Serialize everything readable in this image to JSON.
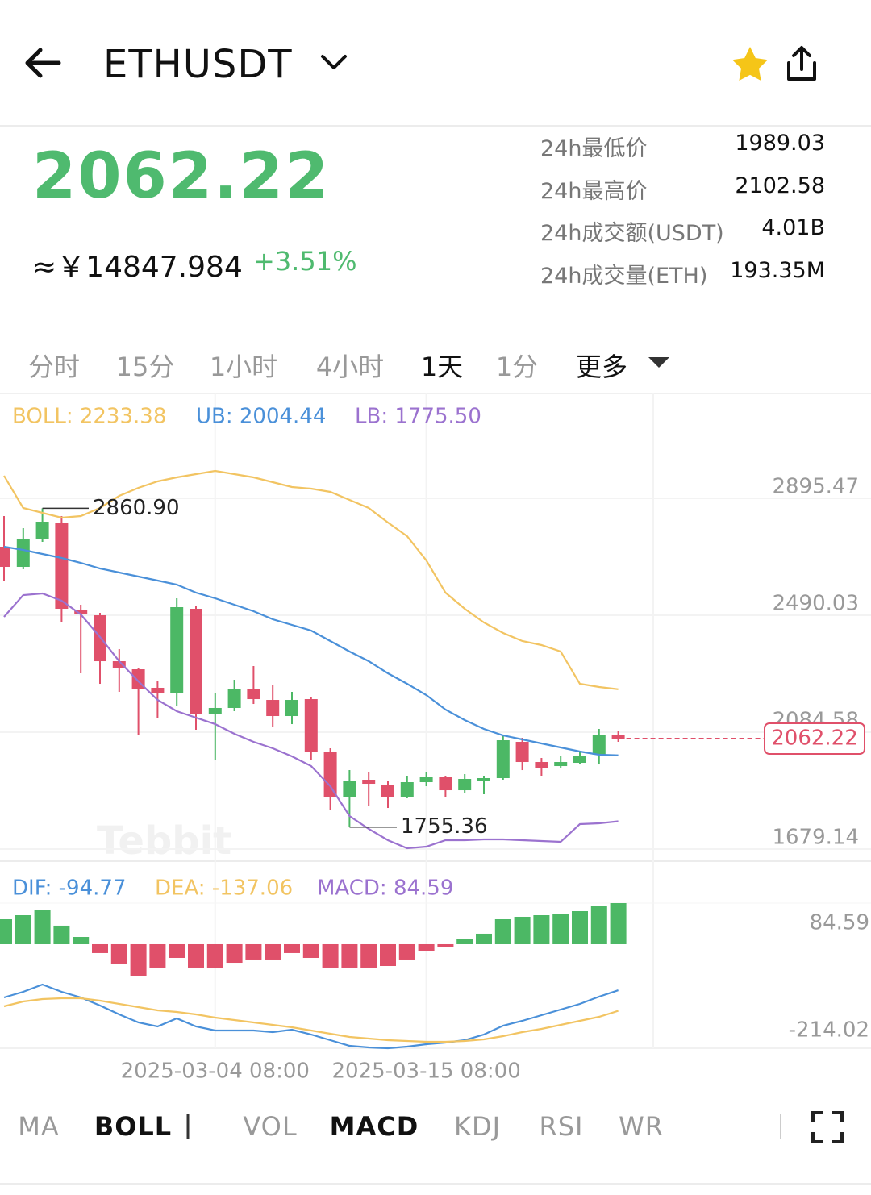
{
  "header": {
    "symbol": "ETHUSDT"
  },
  "ticker": {
    "price": "2062.22",
    "price_cny": "≈￥14847.984",
    "change": "+3.51%",
    "stats": [
      {
        "label": "24h最低价",
        "value": "1989.03"
      },
      {
        "label": "24h最高价",
        "value": "2102.58"
      },
      {
        "label": "24h成交额(USDT)",
        "value": "4.01B"
      },
      {
        "label": "24h成交量(ETH)",
        "value": "193.35M"
      }
    ]
  },
  "timeframes": {
    "items": [
      "分时",
      "15分",
      "1小时",
      "4小时",
      "1天",
      "1分",
      "更多"
    ],
    "active_index": 4
  },
  "indicators": {
    "items": [
      "MA",
      "BOLL",
      "VOL",
      "MACD",
      "KDJ",
      "RSI",
      "WR"
    ],
    "active_indices": [
      1,
      3
    ]
  },
  "chart_data": [
    {
      "type": "candlestick",
      "watermark": "Tebbit",
      "categories": [
        null,
        null,
        null,
        null,
        null,
        null,
        null,
        null,
        null,
        null,
        null,
        "2025-03-04 08:00",
        null,
        null,
        null,
        null,
        null,
        null,
        null,
        null,
        null,
        null,
        "2025-03-15 08:00",
        null,
        null,
        null,
        null,
        null,
        null,
        null,
        null,
        null,
        null
      ],
      "candles": {
        "open": [
          2727.7,
          2657.8,
          2755.7,
          2811.6,
          2506.8,
          2490.0,
          2330.6,
          2302.7,
          2238.4,
          2218.8,
          2512.4,
          2148.9,
          2168.5,
          2232.8,
          2196.4,
          2140.5,
          2199.2,
          2014.7,
          1860.9,
          1919.6,
          1902.8,
          1860.9,
          1911.2,
          1928.0,
          1883.2,
          1916.8,
          1925.2,
          2051.0,
          1981.1,
          1967.1,
          1978.3,
          2006.3,
          2073.4
        ],
        "high": [
          2834.0,
          2792.0,
          2860.9,
          2834.0,
          2526.4,
          2498.4,
          2372.6,
          2308.3,
          2260.7,
          2548.7,
          2520.8,
          2218.8,
          2266.3,
          2313.9,
          2246.8,
          2224.4,
          2204.8,
          2028.6,
          1953.1,
          1944.8,
          1916.8,
          1933.6,
          1947.6,
          1933.6,
          1939.2,
          1933.6,
          2070.6,
          2065.0,
          1995.1,
          2003.5,
          2017.5,
          2095.8,
          2090.2
        ],
        "low": [
          2610.3,
          2649.4,
          2744.5,
          2464.9,
          2288.7,
          2252.3,
          2224.4,
          2073.4,
          2134.9,
          2176.8,
          2093.0,
          1989.5,
          2157.3,
          2182.4,
          2101.4,
          2112.5,
          1986.7,
          1813.3,
          1755.36,
          1827.3,
          1821.7,
          1855.3,
          1897.2,
          1860.9,
          1872.1,
          1869.3,
          1919.6,
          1953.1,
          1933.6,
          1961.5,
          1972.7,
          1972.7,
          2051.0
        ],
        "close": [
          2657.8,
          2755.7,
          2814.4,
          2512.4,
          2492.8,
          2330.6,
          2308.3,
          2232.8,
          2218.8,
          2518.0,
          2146.1,
          2168.5,
          2232.8,
          2199.2,
          2140.5,
          2196.4,
          2017.5,
          1860.9,
          1916.8,
          1905.6,
          1860.9,
          1911.2,
          1930.8,
          1883.2,
          1922.4,
          1925.2,
          2056.6,
          1981.1,
          1961.5,
          1981.1,
          2000.7,
          2073.4,
          2062.22
        ],
        "up_color": "#4cb865",
        "down_color": "#e0506a"
      },
      "high_label": "2860.90",
      "series": [
        {
          "label": "BOLL: 2233.38",
          "color": "#f2c462",
          "values": [
            2973.8,
            2861.9,
            2845.2,
            2828.4,
            2834.0,
            2861.9,
            2903.9,
            2931.8,
            2954.2,
            2968.2,
            2979.4,
            2990.5,
            2979.4,
            2968.2,
            2951.4,
            2934.6,
            2929.0,
            2917.8,
            2889.9,
            2861.9,
            2811.6,
            2764.0,
            2680.2,
            2568.3,
            2512.4,
            2464.9,
            2428.5,
            2400.5,
            2386.5,
            2364.2,
            2252.3,
            2241.2,
            2233.38
          ]
        },
        {
          "label": "UB: 2004.44",
          "color": "#4a90d9",
          "values": [
            2727.7,
            2716.5,
            2702.5,
            2688.6,
            2671.8,
            2652.2,
            2638.2,
            2624.2,
            2610.3,
            2596.3,
            2568.3,
            2548.7,
            2526.4,
            2504.0,
            2476.0,
            2456.5,
            2436.9,
            2400.5,
            2364.2,
            2330.6,
            2288.7,
            2252.3,
            2213.2,
            2162.9,
            2126.5,
            2095.8,
            2073.4,
            2059.4,
            2045.4,
            2031.5,
            2017.5,
            2006.3,
            2004.44
          ]
        },
        {
          "label": "LB: 1775.50",
          "color": "#9b72cf",
          "values": [
            2484.4,
            2559.9,
            2565.5,
            2540.3,
            2492.8,
            2414.5,
            2330.6,
            2260.7,
            2196.4,
            2157.3,
            2134.9,
            2112.5,
            2079.0,
            2051.0,
            2028.6,
            2000.7,
            1967.1,
            1897.2,
            1793.8,
            1749.0,
            1709.9,
            1681.9,
            1687.5,
            1709.9,
            1709.9,
            1712.7,
            1712.7,
            1709.9,
            1707.1,
            1704.3,
            1765.8,
            1768.6,
            1775.5
          ]
        }
      ],
      "ylim": [
        1637.2,
        3259.0
      ],
      "yticks": [
        2895.47,
        2490.03,
        2084.58,
        1679.14
      ],
      "grid": true
    },
    {
      "type": "macd",
      "histogram": {
        "values": [
          51.4,
          59.7,
          71.3,
          38.2,
          14.9,
          -18.2,
          -39.8,
          -64.7,
          -48.1,
          -28.2,
          -48.1,
          -49.8,
          -38.2,
          -31.5,
          -31.5,
          -18.2,
          -28.2,
          -48.1,
          -48.1,
          -48.1,
          -44.8,
          -31.5,
          -14.9,
          -6.6,
          10.0,
          21.6,
          51.4,
          56.4,
          59.7,
          63.0,
          68.0,
          79.6,
          84.59
        ],
        "up_color": "#4cb865",
        "down_color": "#e0506a"
      },
      "series": [
        {
          "label": "DIF: -94.77",
          "color": "#4a90d9",
          "values": [
            -109.5,
            -97.9,
            -83.0,
            -97.9,
            -109.5,
            -126.1,
            -144.3,
            -160.9,
            -169.2,
            -152.6,
            -169.2,
            -177.5,
            -177.5,
            -177.5,
            -180.8,
            -175.9,
            -185.8,
            -197.4,
            -209.0,
            -212.4,
            -214.0,
            -210.7,
            -205.7,
            -202.4,
            -197.4,
            -185.8,
            -167.6,
            -157.6,
            -146.0,
            -134.4,
            -122.8,
            -107.8,
            -94.77
          ]
        },
        {
          "label": "DEA: -137.06",
          "color": "#f2c462",
          "values": [
            -127.7,
            -117.8,
            -112.8,
            -111.2,
            -111.2,
            -116.1,
            -122.8,
            -129.4,
            -136.0,
            -139.4,
            -144.3,
            -151.0,
            -155.9,
            -160.9,
            -165.9,
            -170.9,
            -177.5,
            -184.1,
            -190.8,
            -194.1,
            -197.4,
            -199.1,
            -200.7,
            -200.7,
            -199.1,
            -195.8,
            -189.1,
            -180.8,
            -174.2,
            -165.9,
            -157.6,
            -149.3,
            -137.06
          ]
        }
      ],
      "histogram_label": "MACD: 84.59",
      "histogram_label_color": "#9b72cf",
      "ylim": [
        -214.02,
        84.59
      ],
      "yticks": [
        84.59,
        -214.02
      ]
    }
  ]
}
